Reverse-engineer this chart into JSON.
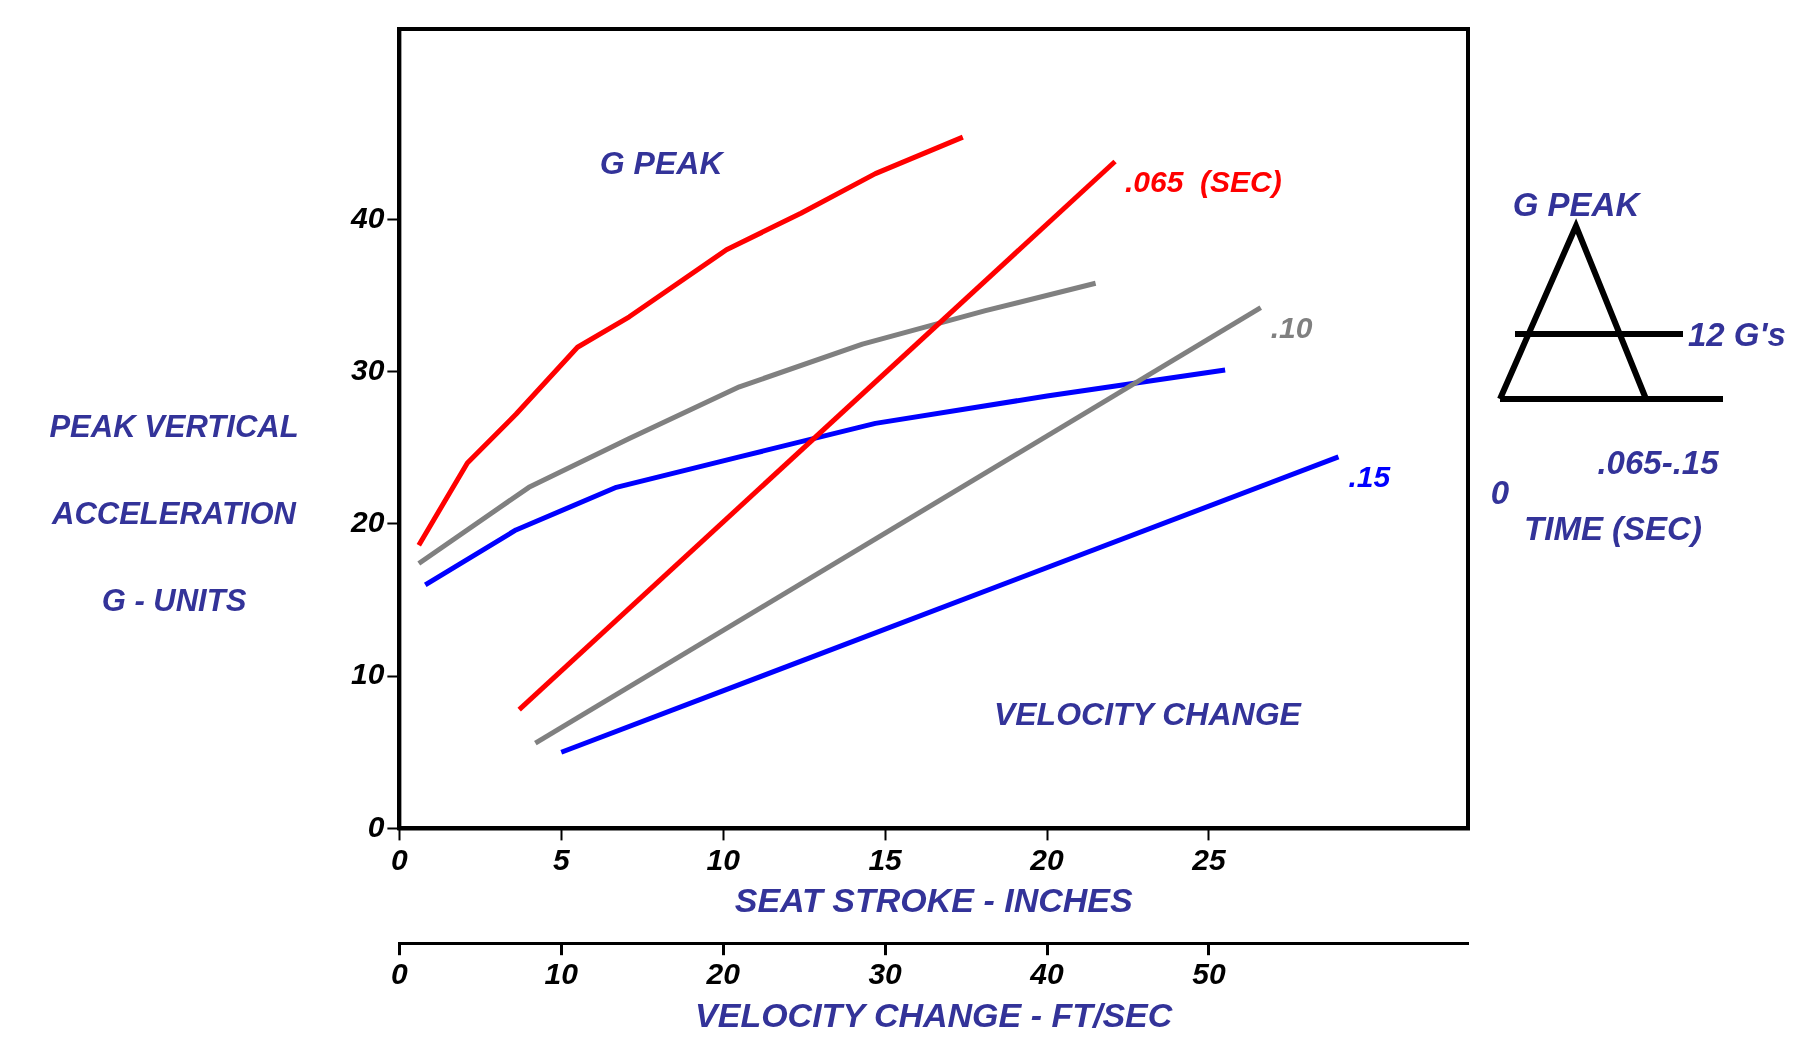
{
  "chart_data": {
    "type": "line",
    "xlabel": "SEAT STROKE - INCHES",
    "x2label": "VELOCITY CHANGE - FT/SEC",
    "ylabel": "PEAK VERTICAL ACCELERATION G - UNITS",
    "xlim": [
      0,
      33
    ],
    "xticks": [
      0,
      5,
      10,
      15,
      20,
      25
    ],
    "x2lim": [
      0,
      66
    ],
    "x2ticks": [
      0,
      10,
      20,
      30,
      40,
      50
    ],
    "ylim": [
      0,
      52.5
    ],
    "yticks": [
      0,
      10,
      20,
      30,
      40
    ],
    "grid": false,
    "legend": false,
    "series": [
      {
        "color": "#ff0000",
        "x": [
          0.6,
          2.1,
          3.6,
          5.5,
          7.1,
          10.1,
          12.4,
          14.7,
          17.4
        ],
        "values": [
          18.6,
          24,
          27.2,
          31.6,
          33.6,
          38,
          40.4,
          43,
          45.4
        ]
      },
      {
        "name": ".065  (SEC)",
        "color": "#ff0000",
        "x": [
          3.7,
          22.1
        ],
        "values": [
          7.8,
          43.8
        ]
      },
      {
        "color": "#808080",
        "x": [
          0.6,
          4,
          7.1,
          10.5,
          14.3,
          18.1,
          21.5
        ],
        "values": [
          17.4,
          22.4,
          25.6,
          29,
          31.8,
          34,
          35.8
        ]
      },
      {
        "name": ".10",
        "color": "#808080",
        "x": [
          4.2,
          26.6
        ],
        "values": [
          5.6,
          34.2
        ]
      },
      {
        "color": "#0000ff",
        "x": [
          0.8,
          3.6,
          6.7,
          10.5,
          14.7,
          20,
          25.5
        ],
        "values": [
          16,
          19.6,
          22.4,
          24.4,
          26.6,
          28.4,
          30.1
        ]
      },
      {
        "name": ".15",
        "color": "#0000ff",
        "x": [
          5,
          29
        ],
        "values": [
          5,
          24.4
        ]
      }
    ],
    "annotations": [
      "G PEAK",
      "VELOCITY CHANGE",
      "G PEAK",
      "12 G's",
      "0",
      ".065-.15",
      "TIME (SEC)"
    ]
  }
}
